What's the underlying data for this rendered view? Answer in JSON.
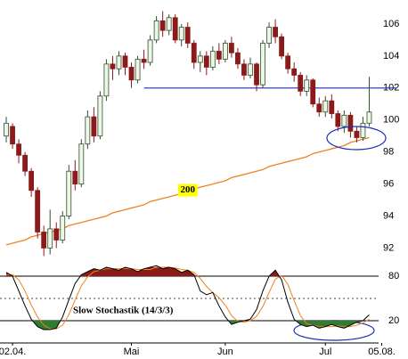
{
  "chart_data": [
    {
      "type": "candlestick",
      "open": [
        99.0,
        99.6,
        98.5,
        97.8,
        96.8,
        95.6,
        93.0,
        92.0,
        93.2,
        92.5,
        94.0,
        96.8,
        96.0,
        98.5,
        100.2,
        99.0,
        101.5,
        103.5,
        103.2,
        104.0,
        103.3,
        102.5,
        103.8,
        103.6,
        105.0,
        106.2,
        105.6,
        106.4,
        105.0,
        105.8,
        104.8,
        103.6,
        104.0,
        103.3,
        104.3,
        103.8,
        104.8,
        104.2,
        103.5,
        102.8,
        103.5,
        102.2,
        104.8,
        105.8,
        105.2,
        104.0,
        103.2,
        102.8,
        101.8,
        102.5,
        101.0,
        100.5,
        101.2,
        100.4,
        99.6,
        100.3,
        99.3,
        98.9,
        99.8
      ],
      "close": [
        99.8,
        98.5,
        97.8,
        96.8,
        95.6,
        93.0,
        92.0,
        93.2,
        92.5,
        94.0,
        96.8,
        96.0,
        98.5,
        100.2,
        99.0,
        101.5,
        103.5,
        103.2,
        104.0,
        103.3,
        102.5,
        103.8,
        103.6,
        105.0,
        106.2,
        105.6,
        106.4,
        105.0,
        105.8,
        104.8,
        103.6,
        104.0,
        103.3,
        104.3,
        103.8,
        104.8,
        104.2,
        103.5,
        102.8,
        103.5,
        102.2,
        104.8,
        105.8,
        105.2,
        104.0,
        103.2,
        102.8,
        101.8,
        102.5,
        101.0,
        100.5,
        101.2,
        100.4,
        99.6,
        100.3,
        99.3,
        98.9,
        99.8,
        100.5
      ],
      "high": [
        100.2,
        99.8,
        98.8,
        98.0,
        97.0,
        95.8,
        93.4,
        94.4,
        93.6,
        94.3,
        97.2,
        97.5,
        98.8,
        100.6,
        100.8,
        101.8,
        103.8,
        104.0,
        104.3,
        104.2,
        103.6,
        104.0,
        104.4,
        105.3,
        106.5,
        106.8,
        106.6,
        106.6,
        106.0,
        106.1,
        105.0,
        104.3,
        104.3,
        104.6,
        104.8,
        105.0,
        105.2,
        104.5,
        103.8,
        103.9,
        103.6,
        105.0,
        106.1,
        106.3,
        105.4,
        104.2,
        103.6,
        103.0,
        102.8,
        102.6,
        101.4,
        101.5,
        101.6,
        100.6,
        100.6,
        100.5,
        99.6,
        100.2,
        102.7
      ],
      "low": [
        98.6,
        98.2,
        97.3,
        96.5,
        95.2,
        92.6,
        91.5,
        91.6,
        92.0,
        92.3,
        93.8,
        95.6,
        95.8,
        98.2,
        98.6,
        98.8,
        101.2,
        102.5,
        102.8,
        102.8,
        102.0,
        102.3,
        103.2,
        103.4,
        104.8,
        105.2,
        105.3,
        104.8,
        104.6,
        104.5,
        103.2,
        103.0,
        102.8,
        103.1,
        103.5,
        103.6,
        103.9,
        103.2,
        102.5,
        102.6,
        101.8,
        102.0,
        104.5,
        104.8,
        103.8,
        102.9,
        102.4,
        101.5,
        101.5,
        100.8,
        100.2,
        100.2,
        100.1,
        99.3,
        99.2,
        98.9,
        98.6,
        98.7,
        99.6
      ],
      "up_color": "#eef6e6",
      "down_color": "#8b1a1a",
      "edge_color": "#2f4f2f",
      "moving_average": {
        "label": "200",
        "color": "#f0821e",
        "values": [
          92.2,
          92.3,
          92.4,
          92.5,
          92.7,
          92.8,
          92.9,
          93.0,
          93.1,
          93.2,
          93.4,
          93.5,
          93.6,
          93.7,
          93.8,
          93.9,
          94.0,
          94.2,
          94.3,
          94.4,
          94.5,
          94.6,
          94.7,
          94.9,
          95.0,
          95.1,
          95.2,
          95.3,
          95.4,
          95.5,
          95.7,
          95.8,
          95.9,
          96.0,
          96.1,
          96.2,
          96.4,
          96.5,
          96.6,
          96.7,
          96.8,
          96.9,
          97.1,
          97.2,
          97.3,
          97.4,
          97.5,
          97.6,
          97.7,
          97.9,
          98.0,
          98.1,
          98.2,
          98.3,
          98.4,
          98.6,
          98.7,
          98.8,
          98.9
        ]
      },
      "reference_line": {
        "value": 102,
        "start": 22,
        "color": "#1c2fb4"
      },
      "xlim": [
        -1,
        59.5
      ],
      "ylim": [
        90.8,
        107.5
      ],
      "yticks": [
        92,
        94,
        96,
        98,
        100,
        102,
        104,
        106
      ]
    },
    {
      "type": "line",
      "title": "Slow Stochastik (14/3/3)",
      "series": [
        {
          "color": "#000000",
          "values": [
            85,
            80,
            60,
            40,
            22,
            12,
            8,
            8,
            10,
            25,
            48,
            70,
            82,
            86,
            90,
            88,
            92,
            90,
            88,
            92,
            90,
            86,
            90,
            92,
            94,
            90,
            92,
            90,
            85,
            88,
            82,
            60,
            55,
            58,
            40,
            25,
            15,
            18,
            20,
            22,
            35,
            60,
            80,
            88,
            75,
            45,
            22,
            15,
            12,
            14,
            10,
            12,
            15,
            12,
            10,
            14,
            18,
            20,
            28
          ]
        },
        {
          "color": "#f0821e",
          "values": [
            82,
            82,
            75,
            60,
            41,
            25,
            14,
            9,
            9,
            14,
            28,
            48,
            67,
            79,
            86,
            88,
            90,
            90,
            90,
            90,
            90,
            89,
            89,
            89,
            92,
            92,
            92,
            91,
            89,
            88,
            85,
            77,
            66,
            58,
            51,
            41,
            27,
            19,
            18,
            20,
            26,
            39,
            58,
            76,
            81,
            69,
            47,
            27,
            16,
            14,
            12,
            12,
            12,
            13,
            12,
            12,
            14,
            17,
            22
          ]
        }
      ],
      "fill_above": {
        "level": 80,
        "color": "#8b1a1a"
      },
      "fill_below": {
        "level": 20,
        "color": "#2e7d32"
      },
      "midline": 50,
      "xlim": [
        -1,
        59.5
      ],
      "ylim": [
        -10,
        92
      ],
      "yticks": [
        20,
        80
      ],
      "xticks": [
        {
          "value": 1,
          "label": "02.04."
        },
        {
          "value": 20,
          "label": "Mai"
        },
        {
          "value": 35,
          "label": "Jun"
        },
        {
          "value": 51,
          "label": "Jul"
        },
        {
          "value": 60,
          "label": "05.08."
        }
      ]
    }
  ]
}
